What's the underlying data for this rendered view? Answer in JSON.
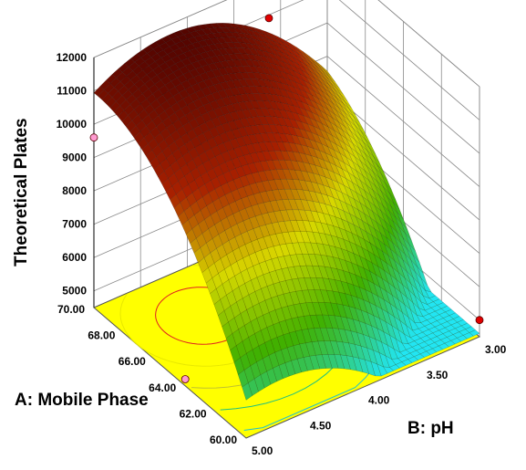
{
  "chart_data": {
    "type": "surface3d",
    "zlabel": "Theoretical Plates",
    "xlabel": "A: Mobile Phase",
    "ylabel": "B: pH",
    "x_ticks": [
      "60.00",
      "62.00",
      "64.00",
      "66.00",
      "68.00",
      "70.00"
    ],
    "y_ticks": [
      "5.00",
      "4.50",
      "4.00",
      "3.50",
      "3.00"
    ],
    "z_ticks": [
      "5000",
      "6000",
      "7000",
      "8000",
      "9000",
      "10000",
      "11000",
      "12000"
    ],
    "xlim": [
      60,
      70
    ],
    "ylim": [
      3,
      5
    ],
    "zlim": [
      4500,
      12000
    ],
    "design_points": [
      {
        "A": 70,
        "B": 5.0,
        "plates": 9600,
        "side": "below"
      },
      {
        "A": 64,
        "B": 5.0,
        "plates": 4700,
        "side": "below"
      },
      {
        "A": 60,
        "B": 3.0,
        "plates": 5000,
        "side": "above"
      },
      {
        "A": 70,
        "B": 3.5,
        "plates": 10900,
        "side": "above"
      }
    ],
    "colors": {
      "floor": "#ffff00",
      "low": "#20e8ff",
      "mid": "#40b000",
      "mid_high": "#d8d800",
      "high": "#a82000",
      "top": "#5a0000"
    }
  }
}
